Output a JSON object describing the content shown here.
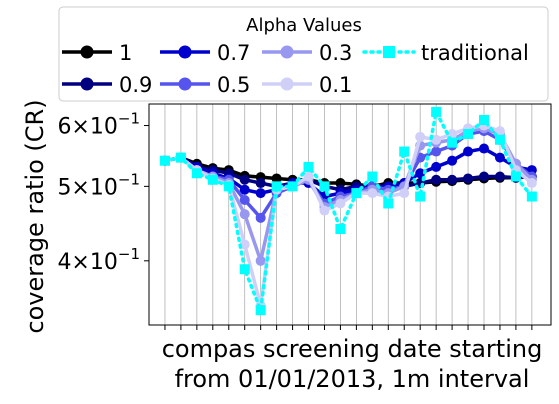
{
  "chart_data": {
    "type": "line",
    "title": "",
    "xlabel": "compas screening date starting\nfrom 01/01/2013, 1m interval",
    "ylabel": "coverage ratio (CR)",
    "yscale": "log",
    "ylim": [
      0.33,
      0.64
    ],
    "xlim": [
      -1,
      24.2
    ],
    "grid": "vertical",
    "x": [
      0,
      1,
      2,
      3,
      4,
      5,
      6,
      7,
      8,
      9,
      10,
      11,
      12,
      13,
      14,
      15,
      16,
      17,
      18,
      19,
      20,
      21,
      22,
      23
    ],
    "y_ticks": [
      {
        "value": 0.6,
        "mantissa": "6",
        "base": "10",
        "exponent": "−1"
      },
      {
        "value": 0.5,
        "mantissa": "5",
        "base": "10",
        "exponent": "−1"
      },
      {
        "value": 0.4,
        "mantissa": "4",
        "base": "10",
        "exponent": "−1"
      }
    ],
    "legend": {
      "title": "Alpha Values",
      "placement": "top, outside plot",
      "rows": [
        [
          0,
          2,
          4,
          6
        ],
        [
          1,
          3,
          5
        ]
      ]
    },
    "series": [
      {
        "name": "1",
        "color": "#000000",
        "style": "solid",
        "marker": "circle",
        "values": [
          0.54,
          0.545,
          0.535,
          0.528,
          0.525,
          0.516,
          0.514,
          0.512,
          0.51,
          0.51,
          0.505,
          0.505,
          0.503,
          0.5,
          0.505,
          0.505,
          0.505,
          0.507,
          0.508,
          0.51,
          0.512,
          0.513,
          0.513,
          0.515
        ]
      },
      {
        "name": "0.9",
        "color": "#000080",
        "style": "solid",
        "marker": "circle",
        "values": [
          0.54,
          0.545,
          0.53,
          0.525,
          0.52,
          0.51,
          0.505,
          0.5,
          0.505,
          0.51,
          0.5,
          0.495,
          0.5,
          0.5,
          0.495,
          0.5,
          0.505,
          0.51,
          0.51,
          0.512,
          0.515,
          0.515,
          0.513,
          0.515
        ]
      },
      {
        "name": "0.7",
        "color": "#0000cd",
        "style": "solid",
        "marker": "circle",
        "values": [
          0.54,
          0.545,
          0.53,
          0.52,
          0.512,
          0.495,
          0.49,
          0.495,
          0.505,
          0.505,
          0.485,
          0.49,
          0.495,
          0.5,
          0.5,
          0.505,
          0.52,
          0.53,
          0.54,
          0.555,
          0.56,
          0.545,
          0.53,
          0.525
        ]
      },
      {
        "name": "0.5",
        "color": "#5555ee",
        "style": "solid",
        "marker": "circle",
        "values": [
          0.54,
          0.545,
          0.525,
          0.515,
          0.51,
          0.48,
          0.455,
          0.49,
          0.5,
          0.51,
          0.475,
          0.485,
          0.49,
          0.5,
          0.495,
          0.5,
          0.545,
          0.555,
          0.565,
          0.585,
          0.59,
          0.575,
          0.535,
          0.515
        ]
      },
      {
        "name": "0.3",
        "color": "#9898f0",
        "style": "solid",
        "marker": "circle",
        "values": [
          0.54,
          0.545,
          0.525,
          0.515,
          0.505,
          0.46,
          0.4,
          0.495,
          0.5,
          0.51,
          0.47,
          0.48,
          0.49,
          0.495,
          0.49,
          0.5,
          0.565,
          0.57,
          0.575,
          0.59,
          0.595,
          0.585,
          0.535,
          0.51
        ]
      },
      {
        "name": "0.1",
        "color": "#cfcff8",
        "style": "solid",
        "marker": "circle",
        "values": [
          0.54,
          0.545,
          0.525,
          0.512,
          0.502,
          0.42,
          0.35,
          0.495,
          0.5,
          0.515,
          0.465,
          0.475,
          0.49,
          0.49,
          0.485,
          0.49,
          0.58,
          0.575,
          0.585,
          0.595,
          0.6,
          0.59,
          0.525,
          0.505
        ]
      },
      {
        "name": "traditional",
        "color": "#00ffff",
        "style": "dotted",
        "marker": "square",
        "values": [
          0.54,
          0.545,
          0.52,
          0.51,
          0.5,
          0.39,
          0.345,
          0.5,
          0.5,
          0.53,
          0.5,
          0.44,
          0.49,
          0.515,
          0.475,
          0.555,
          0.485,
          0.625,
          0.57,
          0.585,
          0.61,
          0.575,
          0.515,
          0.485
        ]
      }
    ]
  }
}
